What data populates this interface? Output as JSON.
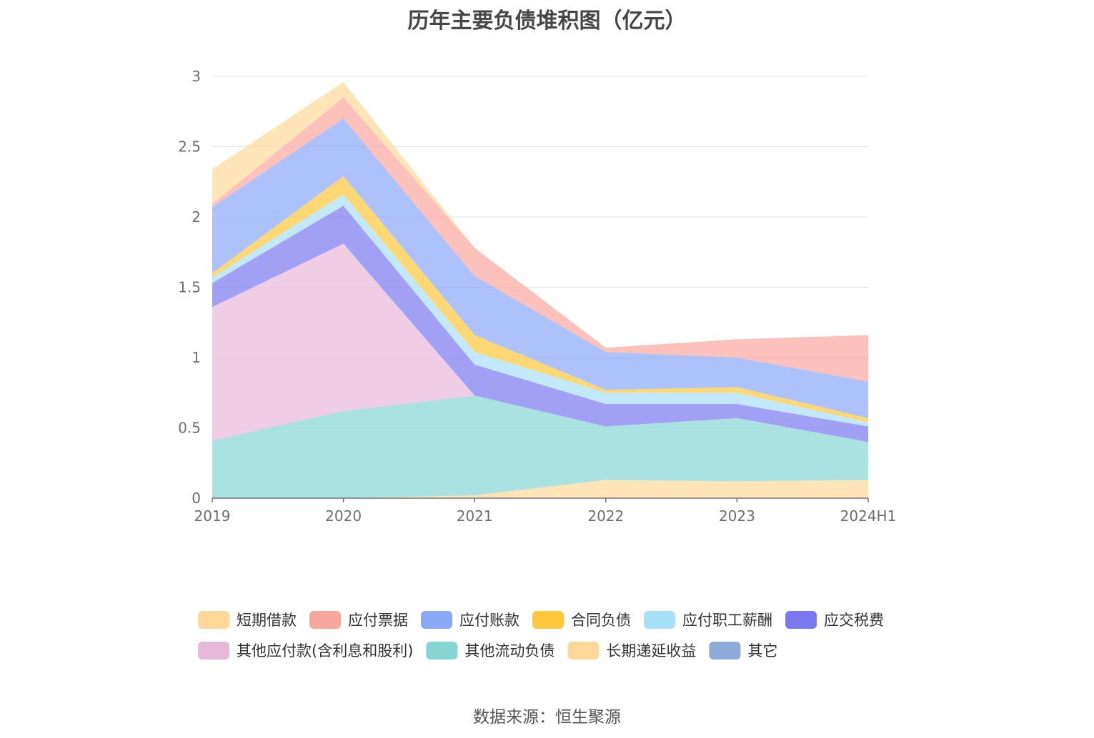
{
  "chart_data": {
    "type": "area",
    "stacked": true,
    "title": "历年主要负债堆积图（亿元）",
    "xlabel": "",
    "ylabel": "",
    "categories": [
      "2019",
      "2020",
      "2021",
      "2022",
      "2023",
      "2024H1"
    ],
    "ylim": [
      0,
      3
    ],
    "yticks": [
      "0",
      "0.5",
      "1",
      "1.5",
      "2",
      "2.5",
      "3"
    ],
    "grid": true,
    "legend_position": "bottom",
    "series": [
      {
        "name": "其它",
        "color": "#8eaad8",
        "values": [
          0.0,
          0.0,
          0.0,
          0.0,
          0.0,
          0.0
        ]
      },
      {
        "name": "长期递延收益",
        "color": "#ffd89a",
        "values": [
          0.0,
          0.0,
          0.02,
          0.13,
          0.12,
          0.13
        ]
      },
      {
        "name": "其他流动负债",
        "color": "#85d5d3",
        "values": [
          0.41,
          0.62,
          0.71,
          0.38,
          0.45,
          0.27
        ]
      },
      {
        "name": "其他应付款(含利息和股利)",
        "color": "#e8b8d8",
        "values": [
          0.95,
          1.19,
          0.0,
          0.0,
          0.0,
          0.0
        ]
      },
      {
        "name": "应交税费",
        "color": "#7a78f0",
        "values": [
          0.17,
          0.27,
          0.22,
          0.16,
          0.1,
          0.11
        ]
      },
      {
        "name": "应付职工薪酬",
        "color": "#a8e0f8",
        "values": [
          0.04,
          0.08,
          0.09,
          0.08,
          0.08,
          0.03
        ]
      },
      {
        "name": "合同负债",
        "color": "#ffc83c",
        "values": [
          0.03,
          0.13,
          0.12,
          0.02,
          0.04,
          0.03
        ]
      },
      {
        "name": "应付账款",
        "color": "#8aa8f8",
        "values": [
          0.47,
          0.41,
          0.42,
          0.27,
          0.21,
          0.26
        ]
      },
      {
        "name": "应付票据",
        "color": "#f9a69c",
        "values": [
          0.02,
          0.15,
          0.2,
          0.03,
          0.13,
          0.33
        ]
      },
      {
        "name": "短期借款",
        "color": "#ffd89a",
        "values": [
          0.25,
          0.11,
          0.0,
          0.0,
          0.0,
          0.0
        ]
      }
    ],
    "legend_order": [
      "短期借款",
      "应付票据",
      "应付账款",
      "合同负债",
      "应付职工薪酬",
      "应交税费",
      "其他应付款(含利息和股利)",
      "其他流动负债",
      "长期递延收益",
      "其它"
    ]
  },
  "source_note": "数据来源：恒生聚源"
}
